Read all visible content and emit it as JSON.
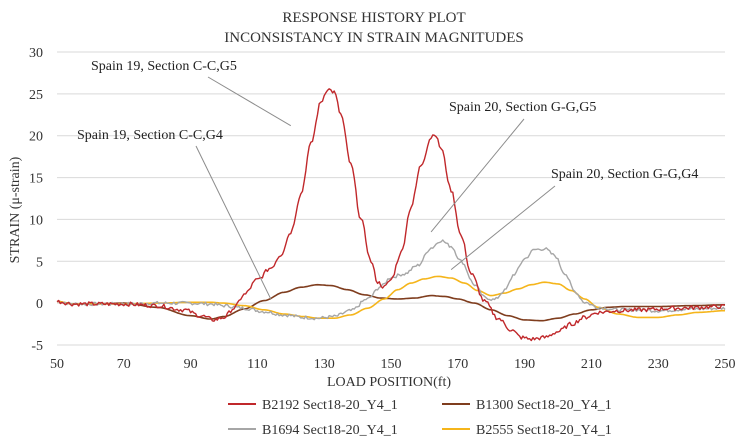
{
  "chart_data": {
    "type": "line",
    "title": [
      "RESPONSE HISTORY PLOT",
      "INCONSISTANCY IN STRAIN MAGNITUDES"
    ],
    "xlabel": "LOAD POSITION(ft)",
    "ylabel": "STRAIN (μ-strain)",
    "xlim": [
      50,
      250
    ],
    "ylim": [
      -5,
      30
    ],
    "xticks": [
      50,
      70,
      90,
      110,
      130,
      150,
      170,
      190,
      210,
      230,
      250
    ],
    "yticks": [
      -5,
      0,
      5,
      10,
      15,
      20,
      25,
      30
    ],
    "grid": "horizontal",
    "legend": "bottom",
    "series": [
      {
        "name": "B1300 Sect18-20_Y4_1",
        "color": "#7f3d1e",
        "noise": 0,
        "points": [
          [
            50,
            0.2
          ],
          [
            55,
            -0.1
          ],
          [
            60,
            -0.1
          ],
          [
            70,
            0
          ],
          [
            80,
            -0.5
          ],
          [
            90,
            -1.5
          ],
          [
            96,
            -1.9
          ],
          [
            100,
            -1.6
          ],
          [
            106,
            -0.7
          ],
          [
            112,
            0.3
          ],
          [
            118,
            1.3
          ],
          [
            123,
            1.9
          ],
          [
            128,
            2.2
          ],
          [
            132,
            2.1
          ],
          [
            137,
            1.6
          ],
          [
            142,
            1.0
          ],
          [
            147,
            0.6
          ],
          [
            152,
            0.5
          ],
          [
            157,
            0.6
          ],
          [
            162,
            0.9
          ],
          [
            166,
            0.8
          ],
          [
            170,
            0.5
          ],
          [
            175,
            0.0
          ],
          [
            180,
            -0.8
          ],
          [
            185,
            -1.5
          ],
          [
            190,
            -2.0
          ],
          [
            195,
            -2.1
          ],
          [
            200,
            -1.8
          ],
          [
            205,
            -1.3
          ],
          [
            210,
            -0.8
          ],
          [
            215,
            -0.5
          ],
          [
            220,
            -0.4
          ],
          [
            230,
            -0.4
          ],
          [
            240,
            -0.3
          ],
          [
            250,
            -0.2
          ]
        ]
      },
      {
        "name": "B2555 Sect18-20_Y4_1",
        "color": "#f5b51b",
        "noise": 0,
        "points": [
          [
            50,
            0.2
          ],
          [
            55,
            -0.1
          ],
          [
            60,
            -0.1
          ],
          [
            70,
            -0.1
          ],
          [
            80,
            0
          ],
          [
            90,
            0.1
          ],
          [
            96,
            0.1
          ],
          [
            100,
            0
          ],
          [
            106,
            -0.3
          ],
          [
            112,
            -0.8
          ],
          [
            118,
            -1.3
          ],
          [
            124,
            -1.6
          ],
          [
            128,
            -1.8
          ],
          [
            133,
            -1.8
          ],
          [
            138,
            -1.4
          ],
          [
            143,
            -0.6
          ],
          [
            148,
            0.5
          ],
          [
            152,
            1.6
          ],
          [
            156,
            2.4
          ],
          [
            160,
            2.9
          ],
          [
            164,
            3.2
          ],
          [
            168,
            3.0
          ],
          [
            172,
            2.4
          ],
          [
            176,
            1.5
          ],
          [
            180,
            0.9
          ],
          [
            184,
            1.2
          ],
          [
            188,
            1.7
          ],
          [
            192,
            2.2
          ],
          [
            196,
            2.5
          ],
          [
            200,
            2.3
          ],
          [
            204,
            1.5
          ],
          [
            208,
            0.5
          ],
          [
            212,
            -0.5
          ],
          [
            218,
            -1.3
          ],
          [
            224,
            -1.7
          ],
          [
            230,
            -1.7
          ],
          [
            236,
            -1.4
          ],
          [
            242,
            -1.1
          ],
          [
            250,
            -0.9
          ]
        ]
      },
      {
        "name": "B1694 Sect18-20_Y4_1",
        "color": "#a6a6a6",
        "noise": 0.2,
        "points": [
          [
            50,
            0.2
          ],
          [
            55,
            -0.1
          ],
          [
            60,
            -0.1
          ],
          [
            70,
            -0.1
          ],
          [
            80,
            0
          ],
          [
            90,
            0
          ],
          [
            96,
            -0.1
          ],
          [
            100,
            -0.3
          ],
          [
            106,
            -0.6
          ],
          [
            112,
            -1.0
          ],
          [
            118,
            -1.4
          ],
          [
            124,
            -1.7
          ],
          [
            128,
            -1.8
          ],
          [
            133,
            -1.6
          ],
          [
            138,
            -0.9
          ],
          [
            143,
            0.5
          ],
          [
            147,
            2.0
          ],
          [
            150,
            3.1
          ],
          [
            154,
            3.5
          ],
          [
            158,
            4.5
          ],
          [
            162,
            6.6
          ],
          [
            165,
            7.5
          ],
          [
            168,
            6.8
          ],
          [
            171,
            5.0
          ],
          [
            175,
            2.2
          ],
          [
            178,
            0.7
          ],
          [
            181,
            0.4
          ],
          [
            184,
            1.5
          ],
          [
            187,
            3.5
          ],
          [
            190,
            5.3
          ],
          [
            193,
            6.4
          ],
          [
            196,
            6.5
          ],
          [
            199,
            5.7
          ],
          [
            202,
            3.6
          ],
          [
            205,
            1.4
          ],
          [
            208,
            0.1
          ],
          [
            212,
            -0.5
          ],
          [
            218,
            -0.8
          ],
          [
            224,
            -0.8
          ],
          [
            230,
            -0.9
          ],
          [
            240,
            -0.7
          ],
          [
            250,
            -0.6
          ]
        ]
      },
      {
        "name": "B2192 Sect18-20_Y4_1",
        "color": "#c0282b",
        "noise": 0.25,
        "points": [
          [
            50,
            0.2
          ],
          [
            55,
            -0.1
          ],
          [
            60,
            -0.1
          ],
          [
            70,
            -0.1
          ],
          [
            80,
            -0.3
          ],
          [
            88,
            -0.8
          ],
          [
            93,
            -1.5
          ],
          [
            97,
            -2.0
          ],
          [
            100,
            -1.7
          ],
          [
            103,
            -0.6
          ],
          [
            106,
            1.0
          ],
          [
            110,
            2.8
          ],
          [
            114,
            4.2
          ],
          [
            117,
            5.8
          ],
          [
            120,
            8.5
          ],
          [
            123,
            13.0
          ],
          [
            126,
            19.0
          ],
          [
            129,
            24.0
          ],
          [
            131,
            25.6
          ],
          [
            133,
            25.2
          ],
          [
            135,
            22.5
          ],
          [
            138,
            16.5
          ],
          [
            141,
            10.0
          ],
          [
            144,
            5.0
          ],
          [
            146,
            2.5
          ],
          [
            148,
            1.9
          ],
          [
            150,
            2.8
          ],
          [
            153,
            6.0
          ],
          [
            156,
            11.5
          ],
          [
            159,
            16.5
          ],
          [
            162,
            19.8
          ],
          [
            163,
            20.3
          ],
          [
            165,
            18.5
          ],
          [
            168,
            13.5
          ],
          [
            171,
            8.0
          ],
          [
            174,
            3.5
          ],
          [
            178,
            0.2
          ],
          [
            182,
            -1.8
          ],
          [
            186,
            -3.2
          ],
          [
            189,
            -4.1
          ],
          [
            192,
            -4.3
          ],
          [
            196,
            -4.1
          ],
          [
            200,
            -3.4
          ],
          [
            204,
            -2.5
          ],
          [
            208,
            -1.7
          ],
          [
            212,
            -1.1
          ],
          [
            218,
            -0.9
          ],
          [
            225,
            -0.8
          ],
          [
            235,
            -0.6
          ],
          [
            250,
            -0.4
          ]
        ]
      }
    ],
    "annotations": [
      {
        "text": "Spain 19, Section C-C,G5",
        "target": [
          120,
          21.2
        ]
      },
      {
        "text": "Spain 19, Section C-C,G4",
        "target": [
          114,
          0.5
        ]
      },
      {
        "text": "Spain 20, Section G-G,G5",
        "target": [
          162,
          8.5
        ]
      },
      {
        "text": "Spain 20, Section G-G,G4",
        "target": [
          168,
          4
        ]
      }
    ],
    "legend_entries": [
      {
        "label": "B2192 Sect18-20_Y4_1",
        "color": "#c0282b"
      },
      {
        "label": "B1300 Sect18-20_Y4_1",
        "color": "#7f3d1e"
      },
      {
        "label": "B1694 Sect18-20_Y4_1",
        "color": "#a6a6a6"
      },
      {
        "label": "B2555 Sect18-20_Y4_1",
        "color": "#f5b51b"
      }
    ]
  }
}
